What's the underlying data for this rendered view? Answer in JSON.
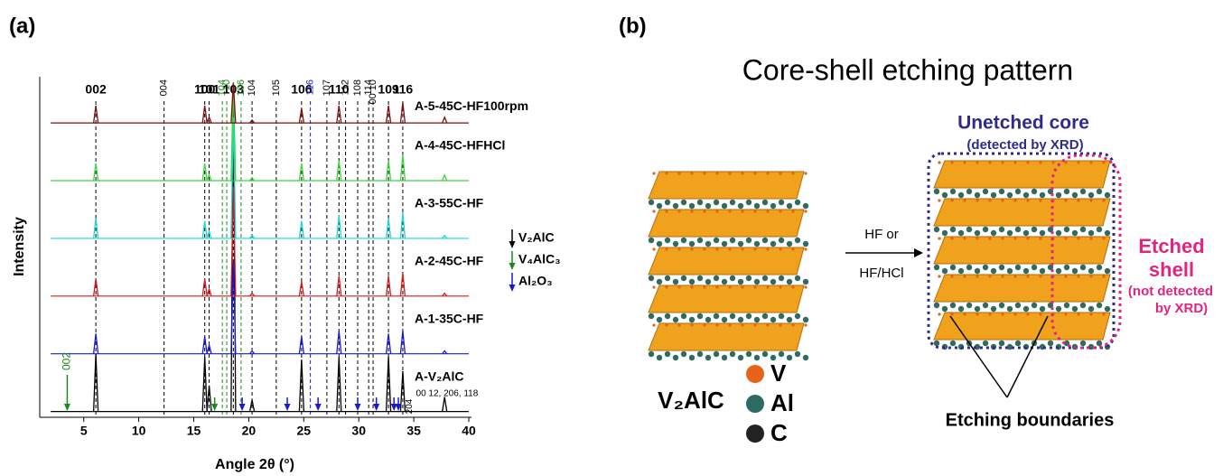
{
  "panel_labels": [
    "(a)",
    "(b)"
  ],
  "chart_data": {
    "type": "stick",
    "xlabel": "Angle 2θ (°)",
    "ylabel": "Intensity",
    "xlim": [
      1,
      40
    ],
    "xticks": [
      5,
      10,
      15,
      20,
      25,
      30,
      35,
      40
    ],
    "ylim": [
      -0.1,
      5.8
    ],
    "x": [
      6.1,
      16.0,
      16.4,
      18.6,
      20.3,
      24.8,
      28.2,
      32.7,
      34.0,
      37.8
    ],
    "series": [
      {
        "name": "A-V₂AlC",
        "color": "#000000",
        "values": [
          1.0,
          0.95,
          0.45,
          5.5,
          0.2,
          0.9,
          0.95,
          0.95,
          0.7,
          0.25
        ]
      },
      {
        "name": "A-1-35C-HF",
        "color": "#1a1ad6",
        "values": [
          0.35,
          0.3,
          0.15,
          1.6,
          0.05,
          0.3,
          0.4,
          0.35,
          0.4,
          0.05
        ]
      },
      {
        "name": "A-2-45C-HF",
        "color": "#d41c1c",
        "values": [
          0.3,
          0.3,
          0.12,
          1.9,
          0.05,
          0.25,
          0.35,
          0.35,
          0.4,
          0.05
        ]
      },
      {
        "name": "A-3-55C-HF",
        "color": "#19d8d8",
        "values": [
          0.35,
          0.3,
          0.12,
          2.1,
          0.05,
          0.3,
          0.4,
          0.35,
          0.45,
          0.05
        ]
      },
      {
        "name": "A-4-45C-HFHCl",
        "color": "#3ed43e",
        "values": [
          0.3,
          0.3,
          0.1,
          1.7,
          0.05,
          0.3,
          0.35,
          0.35,
          0.45,
          0.1
        ]
      },
      {
        "name": "A-5-45C-HF100rpm",
        "color": "#7a1010",
        "values": [
          0.3,
          0.3,
          0.1,
          0.7,
          0.05,
          0.25,
          0.3,
          0.3,
          0.35,
          0.1
        ]
      }
    ],
    "reference_lines": [
      {
        "label": "002",
        "x": 6.1,
        "color": "#000000",
        "bold": true
      },
      {
        "label": "004",
        "x": 12.3,
        "color": "#000000",
        "bold": false
      },
      {
        "label": "100",
        "x": 16.0,
        "color": "#000000",
        "bold": true
      },
      {
        "label": "101",
        "x": 16.4,
        "color": "#000000",
        "bold": true
      },
      {
        "label": "104",
        "x": 17.6,
        "color": "#1a8a1a",
        "bold": false
      },
      {
        "label": "10",
        "x": 18.0,
        "color": "#1a8a1a",
        "bold": false
      },
      {
        "label": "103",
        "x": 18.6,
        "color": "#000000",
        "bold": true
      },
      {
        "label": "106",
        "x": 19.3,
        "color": "#1a8a1a",
        "bold": false
      },
      {
        "label": "104",
        "x": 20.3,
        "color": "#000000",
        "bold": false
      },
      {
        "label": "105",
        "x": 22.5,
        "color": "#000000",
        "bold": false
      },
      {
        "label": "106",
        "x": 24.8,
        "color": "#000000",
        "bold": true
      },
      {
        "label": "116",
        "x": 25.6,
        "color": "#1a1ad6",
        "bold": false
      },
      {
        "label": "107",
        "x": 27.1,
        "color": "#000000",
        "bold": false
      },
      {
        "label": "110",
        "x": 28.2,
        "color": "#000000",
        "bold": true
      },
      {
        "label": "112",
        "x": 28.8,
        "color": "#000000",
        "bold": false
      },
      {
        "label": "108",
        "x": 29.9,
        "color": "#000000",
        "bold": false
      },
      {
        "label": "114",
        "x": 30.9,
        "color": "#000000",
        "bold": false
      },
      {
        "label": "00 10",
        "x": 31.3,
        "color": "#000000",
        "bold": false
      },
      {
        "label": "109",
        "x": 32.7,
        "color": "#000000",
        "bold": true
      },
      {
        "label": "116",
        "x": 34.0,
        "color": "#000000",
        "bold": true
      }
    ],
    "arrows": [
      {
        "x": 3.5,
        "color": "#1a8a1a",
        "label": "002"
      },
      {
        "x": 16.9,
        "color": "#1a8a1a"
      },
      {
        "x": 19.4,
        "color": "#1a1ad6"
      },
      {
        "x": 23.5,
        "color": "#1a1ad6"
      },
      {
        "x": 26.3,
        "color": "#1a1ad6"
      },
      {
        "x": 29.9,
        "color": "#1a1ad6"
      },
      {
        "x": 31.6,
        "color": "#1a1ad6"
      },
      {
        "x": 33.2,
        "color": "#1a1ad6"
      },
      {
        "x": 33.6,
        "color": "#1a1ad6"
      }
    ],
    "annotations": [
      "204",
      "00 12, 206, 118"
    ],
    "phase_legend": [
      {
        "name": "V₂AlC",
        "color": "#000000"
      },
      {
        "name": "V₄AlC₃",
        "color": "#1a8a1a"
      },
      {
        "name": "Al₂O₃",
        "color": "#1a1ad6"
      }
    ]
  },
  "diagram": {
    "title": "Core-shell etching pattern",
    "core_label": "Unetched core",
    "core_note": "(detected by XRD)",
    "step_top": "HF or",
    "step_bottom": "HF/HCl",
    "shell_label": [
      "Etched",
      "shell"
    ],
    "shell_note": [
      "(not detected",
      "by XRD)"
    ],
    "compound": "V₂AlC",
    "elements": [
      {
        "name": "V",
        "color": "#e8631a"
      },
      {
        "name": "Al",
        "color": "#2e6b62"
      },
      {
        "name": "C",
        "color": "#222222"
      }
    ],
    "boundaries": "Etching boundaries"
  }
}
